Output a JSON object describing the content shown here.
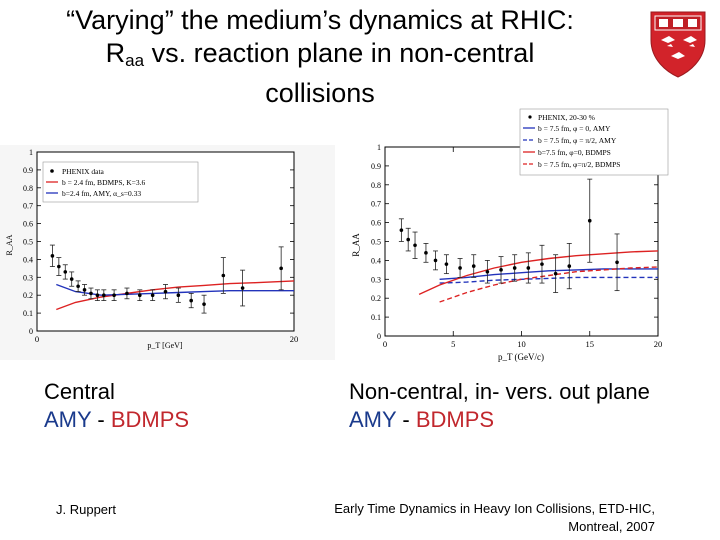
{
  "title": {
    "line1": "“Varying” the medium’s dynamics at RHIC:",
    "line2_prefix": "R",
    "line2_sub": "aa",
    "line2_rest": " vs. reaction plane in non-central",
    "line3": "collisions"
  },
  "captions": {
    "left_title": "Central",
    "left_amy": "AMY",
    "left_sep": " - ",
    "left_bdmps": "BDMPS",
    "right_title": "Non-central, in- vers. out plane",
    "right_amy": "AMY",
    "right_sep": " - ",
    "right_bdmps": "BDMPS"
  },
  "footer": {
    "author": "J. Ruppert",
    "conference_line1": "Early Time Dynamics in Heavy Ion Collisions, ETD-HIC,",
    "conference_line2": "Montreal, 2007"
  },
  "colors": {
    "red": "#dd2222",
    "blue": "#2233bb",
    "caption_blue": "#1a3a8c",
    "caption_red": "#c1272d"
  },
  "chart_data": [
    {
      "type": "line",
      "xlabel": "p_T [GeV]",
      "ylabel": "R_AA",
      "xlim": [
        0,
        20
      ],
      "ylim": [
        0,
        1
      ],
      "xticks": [
        "0",
        "20"
      ],
      "yticks": [
        "0",
        "0.1",
        "0.2",
        "0.3",
        "0.4",
        "0.5",
        "0.6",
        "0.7",
        "0.8",
        "0.9",
        "1"
      ],
      "legend": [
        "PHENIX data",
        "b = 2.4 fm, BDMPS, K=3.6",
        "b=2.4 fm, AMY, α_s=0.33"
      ],
      "data_points": {
        "x": [
          1.2,
          1.7,
          2.2,
          2.7,
          3.2,
          3.7,
          4.2,
          4.7,
          5.2,
          6.0,
          7.0,
          8.0,
          9.0,
          10.0,
          11.0,
          12.0,
          13.0,
          14.5,
          16.0,
          19.0
        ],
        "y": [
          0.42,
          0.36,
          0.33,
          0.29,
          0.25,
          0.23,
          0.21,
          0.2,
          0.2,
          0.2,
          0.21,
          0.2,
          0.2,
          0.22,
          0.2,
          0.17,
          0.15,
          0.31,
          0.24,
          0.35
        ],
        "err": [
          0.06,
          0.05,
          0.04,
          0.04,
          0.03,
          0.03,
          0.03,
          0.03,
          0.03,
          0.03,
          0.03,
          0.03,
          0.03,
          0.04,
          0.04,
          0.04,
          0.05,
          0.1,
          0.1,
          0.12
        ]
      },
      "series": [
        {
          "name": "b = 2.4 fm, BDMPS, K=3.6",
          "color": "#dd2222",
          "dash": false,
          "x": [
            1.5,
            3,
            5,
            7,
            9,
            11,
            13,
            15,
            17,
            20
          ],
          "y": [
            0.12,
            0.16,
            0.19,
            0.21,
            0.23,
            0.245,
            0.255,
            0.265,
            0.27,
            0.28
          ]
        },
        {
          "name": "b=2.4 fm, AMY, α_s=0.33",
          "color": "#2233bb",
          "dash": false,
          "x": [
            1.5,
            3,
            5,
            7,
            9,
            11,
            13,
            15,
            17,
            20
          ],
          "y": [
            0.26,
            0.22,
            0.2,
            0.205,
            0.21,
            0.215,
            0.22,
            0.225,
            0.225,
            0.225
          ]
        }
      ]
    },
    {
      "type": "line",
      "xlabel": "p_T (GeV/c)",
      "ylabel": "R_AA",
      "xlim": [
        0,
        20
      ],
      "ylim": [
        0,
        1
      ],
      "xticks": [
        "0",
        "5",
        "10",
        "15",
        "20"
      ],
      "yticks": [
        "0",
        "0.1",
        "0.2",
        "0.3",
        "0.4",
        "0.5",
        "0.6",
        "0.7",
        "0.8",
        "0.9",
        "1"
      ],
      "legend": [
        "PHENIX, 20-30 %",
        "b = 7.5 fm, φ = 0, AMY",
        "b = 7.5 fm, φ = π/2, AMY",
        "b=7.5 fm, φ=0, BDMPS",
        "b = 7.5 fm, φ=π/2, BDMPS"
      ],
      "data_points": {
        "x": [
          1.2,
          1.7,
          2.2,
          3.0,
          3.7,
          4.5,
          5.5,
          6.5,
          7.5,
          8.5,
          9.5,
          10.5,
          11.5,
          12.5,
          13.5,
          15.0,
          17.0
        ],
        "y": [
          0.56,
          0.51,
          0.48,
          0.44,
          0.4,
          0.38,
          0.36,
          0.37,
          0.34,
          0.35,
          0.36,
          0.36,
          0.38,
          0.33,
          0.37,
          0.61,
          0.39
        ],
        "err": [
          0.06,
          0.06,
          0.07,
          0.05,
          0.05,
          0.05,
          0.05,
          0.06,
          0.06,
          0.07,
          0.07,
          0.08,
          0.1,
          0.1,
          0.12,
          0.22,
          0.15
        ]
      },
      "series": [
        {
          "name": "b = 7.5 fm, φ = 0, AMY",
          "color": "#2233bb",
          "dash": false,
          "x": [
            4,
            6,
            8,
            10,
            12,
            14,
            16,
            18,
            20
          ],
          "y": [
            0.3,
            0.31,
            0.325,
            0.335,
            0.345,
            0.35,
            0.355,
            0.355,
            0.355
          ]
        },
        {
          "name": "b = 7.5 fm, φ = π/2, AMY",
          "color": "#2233bb",
          "dash": true,
          "x": [
            4,
            6,
            8,
            10,
            12,
            14,
            16,
            18,
            20
          ],
          "y": [
            0.28,
            0.285,
            0.295,
            0.3,
            0.305,
            0.31,
            0.31,
            0.31,
            0.31
          ]
        },
        {
          "name": "b=7.5 fm, φ=0, BDMPS",
          "color": "#dd2222",
          "dash": false,
          "x": [
            2.5,
            4,
            6,
            8,
            10,
            12,
            14,
            16,
            18,
            20
          ],
          "y": [
            0.22,
            0.27,
            0.32,
            0.36,
            0.39,
            0.41,
            0.425,
            0.435,
            0.445,
            0.45
          ]
        },
        {
          "name": "b = 7.5 fm, φ=π/2, BDMPS",
          "color": "#dd2222",
          "dash": true,
          "x": [
            4,
            6,
            8,
            10,
            12,
            14,
            16,
            18,
            20
          ],
          "y": [
            0.18,
            0.23,
            0.27,
            0.3,
            0.32,
            0.34,
            0.35,
            0.36,
            0.365
          ]
        }
      ]
    }
  ]
}
